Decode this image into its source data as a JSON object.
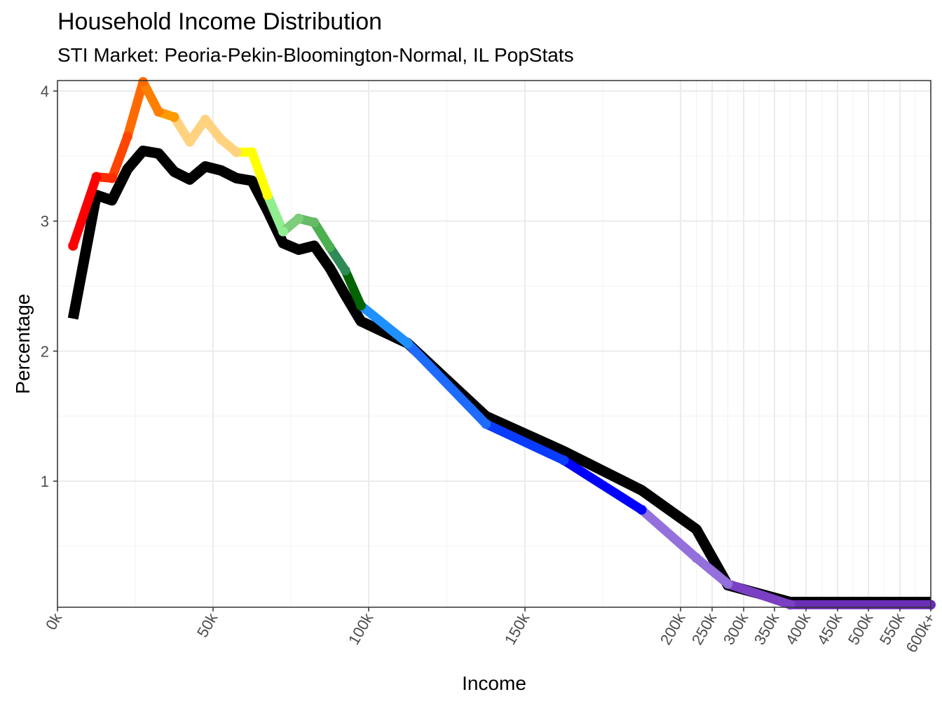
{
  "chart_data": {
    "type": "line",
    "title": "Household Income Distribution",
    "subtitle": "STI Market: Peoria-Pekin-Bloomington-Normal, IL PopStats",
    "xlabel": "Income",
    "ylabel": "Percentage",
    "ylim": [
      0.05,
      4.07
    ],
    "yticks": [
      1,
      2,
      3,
      4
    ],
    "grid": true,
    "legend": "none",
    "x_tick_labels": [
      "0k",
      "50k",
      "100k",
      "150k",
      "200k",
      "250k",
      "300k",
      "350k",
      "400k",
      "450k",
      "500k",
      "550k",
      "600k+"
    ],
    "series": [
      {
        "color": "#000000",
        "points": [
          {
            "x": "5k",
            "y": 2.25
          },
          {
            "x": "12.5k",
            "y": 3.2
          },
          {
            "x": "17.5k",
            "y": 3.16
          },
          {
            "x": "22.5k",
            "y": 3.4
          },
          {
            "x": "27.5k",
            "y": 3.54
          },
          {
            "x": "32.5k",
            "y": 3.52
          },
          {
            "x": "37.5k",
            "y": 3.38
          },
          {
            "x": "42.5k",
            "y": 3.32
          },
          {
            "x": "47.5k",
            "y": 3.42
          },
          {
            "x": "52.5k",
            "y": 3.39
          },
          {
            "x": "57.5k",
            "y": 3.33
          },
          {
            "x": "62.5k",
            "y": 3.31
          },
          {
            "x": "67.5k",
            "y": 3.08
          },
          {
            "x": "72.5k",
            "y": 2.83
          },
          {
            "x": "77.5k",
            "y": 2.78
          },
          {
            "x": "82.5k",
            "y": 2.81
          },
          {
            "x": "87.5k",
            "y": 2.64
          },
          {
            "x": "92.5k",
            "y": 2.43
          },
          {
            "x": "97.5k",
            "y": 2.23
          },
          {
            "x": "112.5k",
            "y": 2.06
          },
          {
            "x": "137.5k",
            "y": 1.5
          },
          {
            "x": "162.5k",
            "y": 1.23
          },
          {
            "x": "187.5k",
            "y": 0.93
          },
          {
            "x": "225k",
            "y": 0.63
          },
          {
            "x": "275k",
            "y": 0.2
          },
          {
            "x": "375k",
            "y": 0.07
          },
          {
            "x": "600k+",
            "y": 0.07
          }
        ]
      },
      {
        "color": "colored by income band",
        "points": [
          {
            "x": "5k",
            "y": 2.81,
            "color": "#ff0000"
          },
          {
            "x": "12.5k",
            "y": 3.34,
            "color": "#ff0000"
          },
          {
            "x": "17.5k",
            "y": 3.33,
            "color": "#ff2a00"
          },
          {
            "x": "22.5k",
            "y": 3.65,
            "color": "#ff4500"
          },
          {
            "x": "27.5k",
            "y": 4.07,
            "color": "#ff6a00"
          },
          {
            "x": "32.5k",
            "y": 3.84,
            "color": "#ff7f00"
          },
          {
            "x": "37.5k",
            "y": 3.8,
            "color": "#ff9a00"
          },
          {
            "x": "42.5k",
            "y": 3.61,
            "color": "#ffd27f"
          },
          {
            "x": "47.5k",
            "y": 3.78,
            "color": "#ffd27f"
          },
          {
            "x": "52.5k",
            "y": 3.63,
            "color": "#ffd27f"
          },
          {
            "x": "57.5k",
            "y": 3.53,
            "color": "#ffd27f"
          },
          {
            "x": "62.5k",
            "y": 3.53,
            "color": "#ffff00"
          },
          {
            "x": "67.5k",
            "y": 3.2,
            "color": "#ffff00"
          },
          {
            "x": "72.5k",
            "y": 2.92,
            "color": "#90ee90"
          },
          {
            "x": "77.5k",
            "y": 3.02,
            "color": "#7ccd7c"
          },
          {
            "x": "82.5k",
            "y": 2.99,
            "color": "#66bb66"
          },
          {
            "x": "87.5k",
            "y": 2.8,
            "color": "#4caf50"
          },
          {
            "x": "92.5k",
            "y": 2.62,
            "color": "#2e8b57"
          },
          {
            "x": "97.5k",
            "y": 2.35,
            "color": "#006400"
          },
          {
            "x": "112.5k",
            "y": 2.06,
            "color": "#1e90ff"
          },
          {
            "x": "137.5k",
            "y": 1.44,
            "color": "#1e6cff"
          },
          {
            "x": "162.5k",
            "y": 1.16,
            "color": "#0a3cff"
          },
          {
            "x": "187.5k",
            "y": 0.78,
            "color": "#0000ff"
          },
          {
            "x": "225k",
            "y": 0.41,
            "color": "#9370db"
          },
          {
            "x": "275k",
            "y": 0.21,
            "color": "#9370db"
          },
          {
            "x": "375k",
            "y": 0.05,
            "color": "#7b3fc4"
          },
          {
            "x": "600k+",
            "y": 0.05,
            "color": "#6a2fb5"
          }
        ]
      }
    ]
  }
}
